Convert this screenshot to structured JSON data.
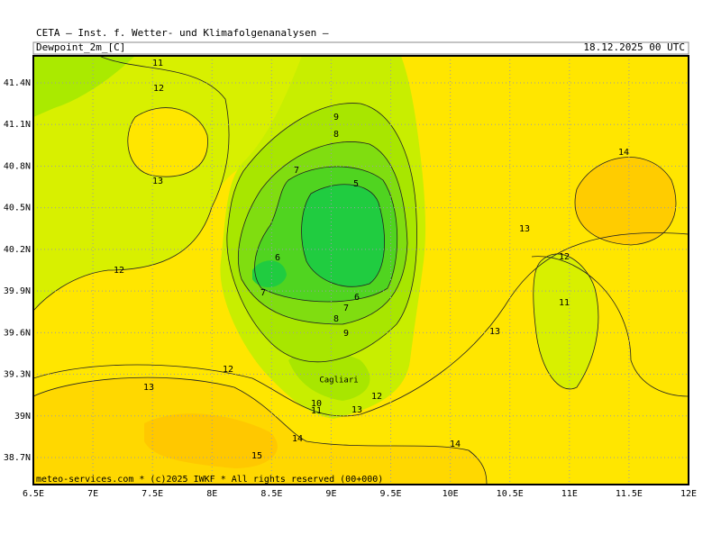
{
  "header": {
    "title": "CETA — Inst. f. Wetter- und Klimafolgenanalysen —",
    "field": "Dewpoint_2m_[C]",
    "date": "18.12.2025 00 UTC"
  },
  "map": {
    "lon_labels": [
      "6.5E",
      "7E",
      "7.5E",
      "8E",
      "8.5E",
      "9E",
      "9.5E",
      "10E",
      "10.5E",
      "11E",
      "11.5E",
      "12E"
    ],
    "lat_labels": [
      "41.4N",
      "41.1N",
      "40.8N",
      "40.5N",
      "40.2N",
      "39.9N",
      "39.6N",
      "39.3N",
      "39N",
      "38.7N"
    ],
    "contour_labels": [
      11,
      12,
      13,
      12,
      9,
      8,
      7,
      5,
      6,
      7,
      6,
      7,
      8,
      9,
      12,
      13,
      10,
      11,
      12,
      13,
      14,
      15,
      14,
      13,
      13,
      12,
      11,
      14
    ],
    "place": "Cagliari",
    "credit": "meteo-services.com * (c)2025 IWKF * All rights reserved (00+000)"
  }
}
